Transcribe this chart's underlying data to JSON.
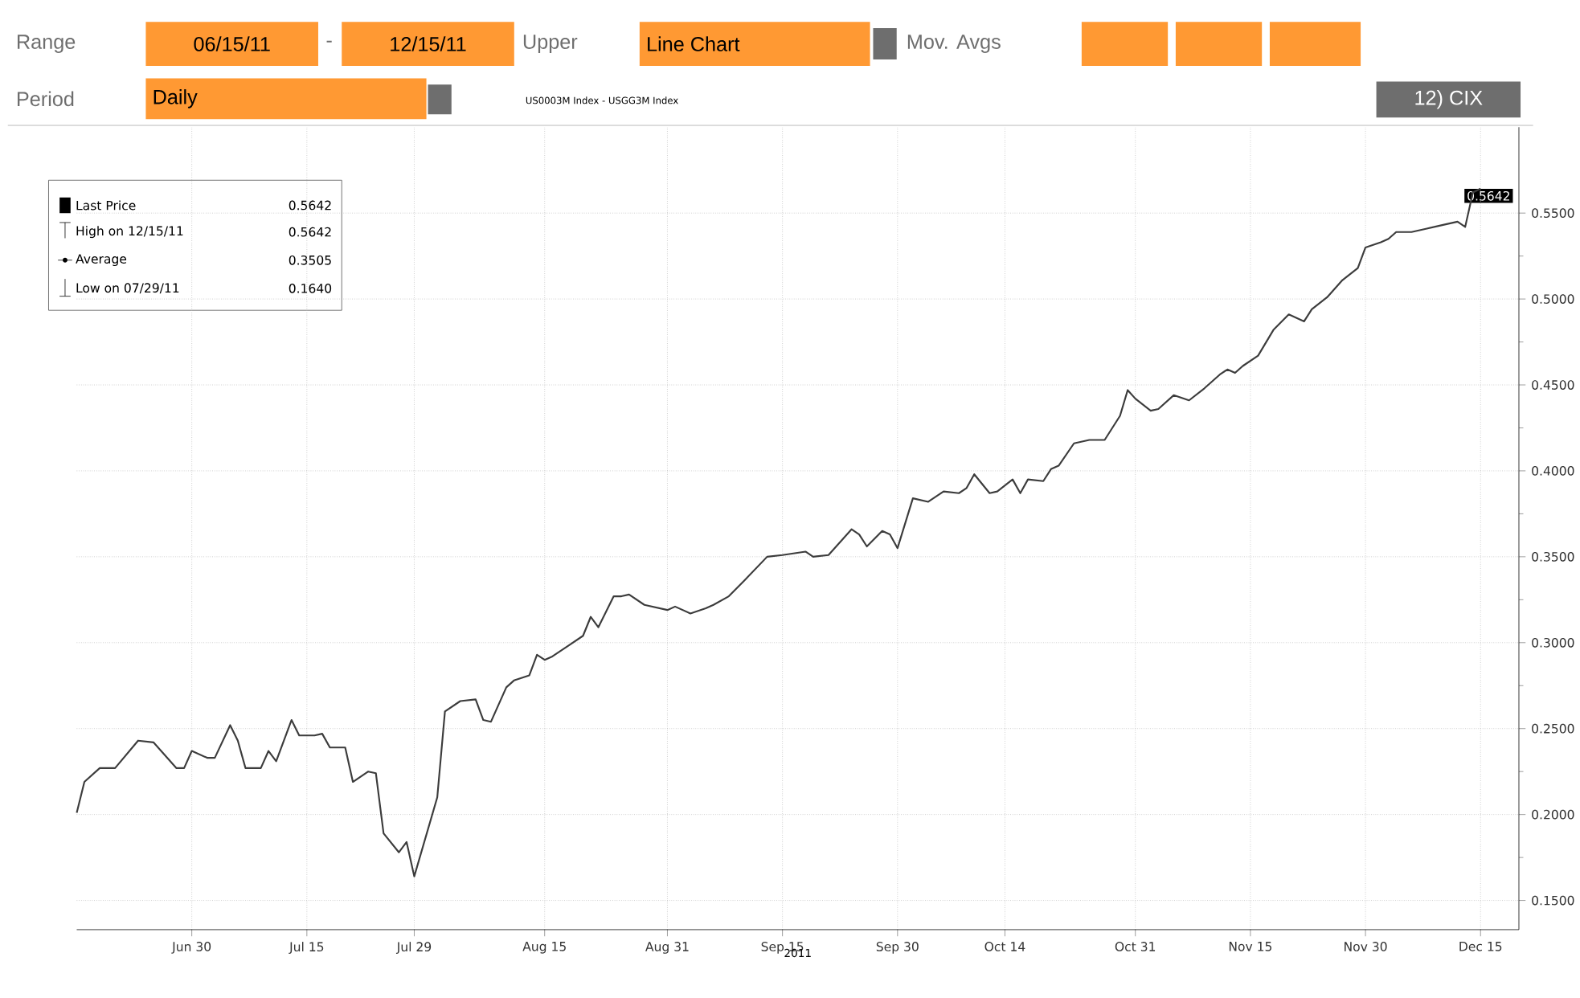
{
  "chart_data": {
    "type": "line",
    "xlabel": "2011",
    "x": [
      "2011-06-15",
      "2011-06-16",
      "2011-06-18",
      "2011-06-20",
      "2011-06-23",
      "2011-06-25",
      "2011-06-26",
      "2011-06-28",
      "2011-06-29",
      "2011-06-30",
      "2011-07-02",
      "2011-07-03",
      "2011-07-05",
      "2011-07-06",
      "2011-07-07",
      "2011-07-09",
      "2011-07-10",
      "2011-07-11",
      "2011-07-13",
      "2011-07-14",
      "2011-07-16",
      "2011-07-17",
      "2011-07-18",
      "2011-07-20",
      "2011-07-21",
      "2011-07-23",
      "2011-07-24",
      "2011-07-25",
      "2011-07-27",
      "2011-07-28",
      "2011-07-29",
      "2011-08-01",
      "2011-08-02",
      "2011-08-04",
      "2011-08-06",
      "2011-08-07",
      "2011-08-08",
      "2011-08-10",
      "2011-08-11",
      "2011-08-13",
      "2011-08-14",
      "2011-08-15",
      "2011-08-16",
      "2011-08-18",
      "2011-08-20",
      "2011-08-21",
      "2011-08-22",
      "2011-08-24",
      "2011-08-25",
      "2011-08-26",
      "2011-08-28",
      "2011-08-31",
      "2011-09-01",
      "2011-09-03",
      "2011-09-05",
      "2011-09-06",
      "2011-09-08",
      "2011-09-10",
      "2011-09-13",
      "2011-09-15",
      "2011-09-18",
      "2011-09-19",
      "2011-09-21",
      "2011-09-24",
      "2011-09-25",
      "2011-09-26",
      "2011-09-28",
      "2011-09-29",
      "2011-09-30",
      "2011-10-02",
      "2011-10-04",
      "2011-10-06",
      "2011-10-08",
      "2011-10-09",
      "2011-10-10",
      "2011-10-12",
      "2011-10-13",
      "2011-10-15",
      "2011-10-16",
      "2011-10-17",
      "2011-10-19",
      "2011-10-20",
      "2011-10-21",
      "2011-10-23",
      "2011-10-25",
      "2011-10-27",
      "2011-10-29",
      "2011-10-30",
      "2011-10-31",
      "2011-11-02",
      "2011-11-03",
      "2011-11-05",
      "2011-11-07",
      "2011-11-09",
      "2011-11-11",
      "2011-11-12",
      "2011-11-13",
      "2011-11-14",
      "2011-11-16",
      "2011-11-18",
      "2011-11-20",
      "2011-11-22",
      "2011-11-23",
      "2011-11-25",
      "2011-11-27",
      "2011-11-29",
      "2011-11-30",
      "2011-12-02",
      "2011-12-03",
      "2011-12-04",
      "2011-12-06",
      "2011-12-08",
      "2011-12-10",
      "2011-12-12",
      "2011-12-13",
      "2011-12-14",
      "2011-12-15"
    ],
    "series": [
      {
        "color": "#3c3c3c",
        "values": [
          0.201,
          0.219,
          0.227,
          0.227,
          0.243,
          0.242,
          0.237,
          0.227,
          0.227,
          0.237,
          0.233,
          0.233,
          0.252,
          0.243,
          0.227,
          0.227,
          0.237,
          0.231,
          0.255,
          0.246,
          0.246,
          0.247,
          0.239,
          0.239,
          0.219,
          0.225,
          0.224,
          0.189,
          0.178,
          0.184,
          0.164,
          0.21,
          0.26,
          0.266,
          0.267,
          0.255,
          0.254,
          0.274,
          0.278,
          0.281,
          0.293,
          0.29,
          0.292,
          0.298,
          0.304,
          0.315,
          0.309,
          0.327,
          0.327,
          0.328,
          0.322,
          0.319,
          0.321,
          0.317,
          0.32,
          0.322,
          0.327,
          0.336,
          0.35,
          0.351,
          0.353,
          0.35,
          0.351,
          0.366,
          0.363,
          0.356,
          0.365,
          0.363,
          0.355,
          0.384,
          0.382,
          0.388,
          0.387,
          0.39,
          0.398,
          0.387,
          0.388,
          0.395,
          0.387,
          0.395,
          0.394,
          0.401,
          0.403,
          0.416,
          0.418,
          0.418,
          0.432,
          0.447,
          0.442,
          0.435,
          0.436,
          0.444,
          0.441,
          0.448,
          0.456,
          0.459,
          0.457,
          0.461,
          0.467,
          0.482,
          0.491,
          0.487,
          0.494,
          0.501,
          0.511,
          0.518,
          0.53,
          0.533,
          0.535,
          0.539,
          0.539,
          0.541,
          0.543,
          0.545,
          0.542,
          0.562,
          0.5642
        ]
      }
    ],
    "xlim": [
      "2011-06-15",
      "2011-12-20"
    ],
    "xticks": [
      {
        "value": "2011-06-30",
        "label": "Jun 30"
      },
      {
        "value": "2011-07-15",
        "label": "Jul 15"
      },
      {
        "value": "2011-07-29",
        "label": "Jul 29"
      },
      {
        "value": "2011-08-15",
        "label": "Aug 15"
      },
      {
        "value": "2011-08-31",
        "label": "Aug 31"
      },
      {
        "value": "2011-09-15",
        "label": "Sep 15"
      },
      {
        "value": "2011-09-30",
        "label": "Sep 30"
      },
      {
        "value": "2011-10-14",
        "label": "Oct 14"
      },
      {
        "value": "2011-10-31",
        "label": "Oct 31"
      },
      {
        "value": "2011-11-15",
        "label": "Nov 15"
      },
      {
        "value": "2011-11-30",
        "label": "Nov 30"
      },
      {
        "value": "2011-12-15",
        "label": "Dec 15"
      }
    ],
    "ylim": [
      0.133,
      0.6
    ],
    "yticks": [
      {
        "value": 0.15,
        "label": "0.1500"
      },
      {
        "value": 0.2,
        "label": "0.2000"
      },
      {
        "value": 0.25,
        "label": "0.2500"
      },
      {
        "value": 0.3,
        "label": "0.3000"
      },
      {
        "value": 0.35,
        "label": "0.3500"
      },
      {
        "value": 0.4,
        "label": "0.4000"
      },
      {
        "value": 0.45,
        "label": "0.4500"
      },
      {
        "value": 0.5,
        "label": "0.5000"
      },
      {
        "value": 0.55,
        "label": "0.5500"
      }
    ],
    "grid": true,
    "marker": "none",
    "line_style": "solid",
    "annotations": [
      "Range",
      "06/15/11",
      "-",
      "12/15/11",
      "Upper",
      "Line Chart",
      "Mov. Avgs",
      "Period",
      "Daily",
      "US0003M Index - USGG3M Index",
      "12) CIX",
      "Last Price",
      "0.5642",
      "High on 12/15/11",
      "0.5642",
      "Average",
      "0.3505",
      "Low on 07/29/11",
      "0.1640",
      "0.5642"
    ]
  }
}
